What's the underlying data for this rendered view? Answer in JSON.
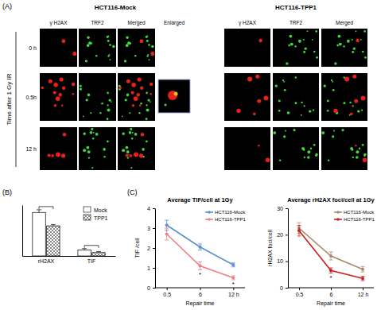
{
  "figure": {
    "panel_labels": [
      "(A)",
      "(B)",
      "(C)"
    ],
    "panel_a": {
      "groups": [
        {
          "title": "HCT116-Mock",
          "columns": [
            "γ H2AX",
            "TRF2",
            "Merged",
            "Enlarged"
          ]
        },
        {
          "title": "HCT116-TPP1",
          "columns": [
            "γ H2AX",
            "TRF2",
            "Merged"
          ]
        }
      ],
      "rows": [
        "0 h",
        "0.5h",
        "12 h"
      ],
      "row_axis_label": "Time after 1 Gy IR"
    }
  },
  "chart_data": [
    {
      "type": "bar",
      "categories": [
        "rH2AX",
        "TIF"
      ],
      "series": [
        {
          "name": "Mock",
          "color": "#ffffff",
          "values": [
            3.25,
            0.45
          ],
          "errors": [
            0.2,
            0.1
          ]
        },
        {
          "name": "TPP1",
          "color": "#555555",
          "values": [
            2.25,
            0.25
          ],
          "errors": [
            0.1,
            0.08
          ]
        }
      ],
      "ylim": [
        0,
        3.8
      ],
      "tick_labels": "x",
      "legend": "upper right"
    },
    {
      "type": "line",
      "title": "Average TIF/cell at 1Gy",
      "x_label": "Repair  time",
      "y_label": "TIF /cell",
      "categories": [
        "0.5",
        "6",
        "12 h"
      ],
      "series": [
        {
          "name": "HCT116-Mock",
          "color": "#5b8fd6",
          "values": [
            3.15,
            2.05,
            1.15
          ],
          "errors": [
            0.25,
            0.15,
            0.1
          ]
        },
        {
          "name": "HCT116-TPP1",
          "color": "#f08080",
          "values": [
            2.7,
            1.1,
            0.5
          ],
          "errors": [
            0.3,
            0.2,
            0.1
          ]
        }
      ],
      "ylim": [
        0,
        4
      ],
      "yticks": [
        0,
        1,
        2,
        3,
        4
      ],
      "legend": "upper right",
      "marker": "circle",
      "annotations": [
        {
          "text": "*",
          "series": 1,
          "category": 1
        },
        {
          "text": "*",
          "series": 1,
          "category": 2
        }
      ]
    },
    {
      "type": "line",
      "title": "Average rH2AX foci/cell at 1Gy",
      "x_label": "Repair  time",
      "y_label": "rH2AX foci/cell",
      "categories": [
        "0.5",
        "6",
        "12 h"
      ],
      "series": [
        {
          "name": "HCT116-Mock",
          "color": "#a88a6a",
          "values": [
            22.5,
            12,
            7
          ],
          "errors": [
            2,
            1.5,
            1
          ]
        },
        {
          "name": "HCT116-TPP1",
          "color": "#cc1f1f",
          "values": [
            21.5,
            6.5,
            3.5
          ],
          "errors": [
            2,
            1,
            0.8
          ]
        }
      ],
      "ylim": [
        0,
        30
      ],
      "yticks": [
        0,
        10,
        20,
        30
      ],
      "legend": "upper right",
      "marker": "circle",
      "annotations": [
        {
          "text": "*",
          "series": 1,
          "category": 1
        }
      ]
    }
  ]
}
